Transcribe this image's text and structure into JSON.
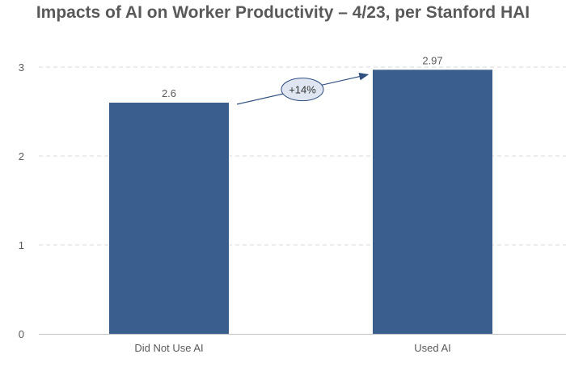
{
  "chart_data": {
    "type": "bar",
    "title": "Impacts of AI on Worker Productivity – 4/23, per Stanford HAI",
    "categories": [
      "Did Not Use AI",
      "Used AI"
    ],
    "values": [
      2.6,
      2.97
    ],
    "data_labels": [
      "2.6",
      "2.97"
    ],
    "ylim": [
      0,
      3.0
    ],
    "yticks": [
      0,
      1,
      2,
      3
    ],
    "xlabel": "",
    "ylabel": "",
    "grid": true,
    "legend": "none",
    "annotation": {
      "text": "+14%",
      "from_category": "Did Not Use AI",
      "to_category": "Used AI"
    },
    "colors": {
      "bar": "#3a5f8f",
      "grid": "#d9d9d9",
      "axis": "#bfbfbf",
      "tick_text": "#595959",
      "annotation_fill": "#dfe6f1",
      "annotation_stroke": "#2f4f7f"
    }
  }
}
